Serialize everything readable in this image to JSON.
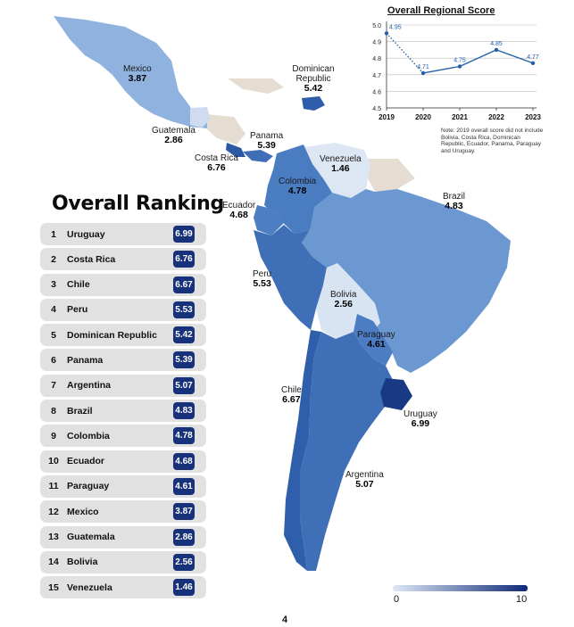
{
  "ranking": {
    "title": "Overall Ranking",
    "rows": [
      {
        "rank": "1",
        "country": "Uruguay",
        "score": "6.99"
      },
      {
        "rank": "2",
        "country": "Costa Rica",
        "score": "6.76"
      },
      {
        "rank": "3",
        "country": "Chile",
        "score": "6.67"
      },
      {
        "rank": "4",
        "country": "Peru",
        "score": "5.53"
      },
      {
        "rank": "5",
        "country": "Dominican Republic",
        "score": "5.42"
      },
      {
        "rank": "6",
        "country": "Panama",
        "score": "5.39"
      },
      {
        "rank": "7",
        "country": "Argentina",
        "score": "5.07"
      },
      {
        "rank": "8",
        "country": "Brazil",
        "score": "4.83"
      },
      {
        "rank": "9",
        "country": "Colombia",
        "score": "4.78"
      },
      {
        "rank": "10",
        "country": "Ecuador",
        "score": "4.68"
      },
      {
        "rank": "11",
        "country": "Paraguay",
        "score": "4.61"
      },
      {
        "rank": "12",
        "country": "Mexico",
        "score": "3.87"
      },
      {
        "rank": "13",
        "country": "Guatemala",
        "score": "2.86"
      },
      {
        "rank": "14",
        "country": "Bolivia",
        "score": "2.56"
      },
      {
        "rank": "15",
        "country": "Venezuela",
        "score": "1.46"
      }
    ]
  },
  "map_labels": [
    {
      "id": "mexico",
      "name": "Mexico",
      "value": "3.87"
    },
    {
      "id": "dominican-republic",
      "name": "Dominican Republic",
      "value": "5.42"
    },
    {
      "id": "guatemala",
      "name": "Guatemala",
      "value": "2.86"
    },
    {
      "id": "panama",
      "name": "Panama",
      "value": "5.39"
    },
    {
      "id": "costa-rica",
      "name": "Costa Rica",
      "value": "6.76"
    },
    {
      "id": "venezuela",
      "name": "Venezuela",
      "value": "1.46"
    },
    {
      "id": "colombia",
      "name": "Colombia",
      "value": "4.78"
    },
    {
      "id": "ecuador",
      "name": "Ecuador",
      "value": "4.68"
    },
    {
      "id": "brazil",
      "name": "Brazil",
      "value": "4.83"
    },
    {
      "id": "peru",
      "name": "Peru",
      "value": "5.53"
    },
    {
      "id": "bolivia",
      "name": "Bolivia",
      "value": "2.56"
    },
    {
      "id": "paraguay",
      "name": "Paraguay",
      "value": "4.61"
    },
    {
      "id": "chile",
      "name": "Chile",
      "value": "6.67"
    },
    {
      "id": "uruguay",
      "name": "Uruguay",
      "value": "6.99"
    },
    {
      "id": "argentina",
      "name": "Argentina",
      "value": "5.07"
    }
  ],
  "legend": {
    "min": "0",
    "max": "10",
    "low_color": "#dde7f5",
    "high_color": "#0e2a78"
  },
  "chart_data": {
    "type": "line",
    "title": "Overall Regional Score",
    "x": [
      "2019",
      "2020",
      "2021",
      "2022",
      "2023"
    ],
    "series": [
      {
        "values": [
          4.95,
          4.71,
          4.75,
          4.85,
          4.77
        ]
      }
    ],
    "data_labels": [
      "4.95",
      "4.71",
      "4.75",
      "4.85",
      "4.77"
    ],
    "y_ticks": [
      "4.5",
      "4.6",
      "4.7",
      "4.8",
      "4.9",
      "5.0"
    ],
    "ylim": [
      4.5,
      5.0
    ],
    "grid": true,
    "note": "Note: 2019 overall score did not include Bolivia, Costa Rica, Dominican Republic, Ecuador, Panama, Paraguay and Uruguay.",
    "line_color": "#1f5fa8",
    "first_segment_style": "dotted"
  },
  "page_number": "4"
}
